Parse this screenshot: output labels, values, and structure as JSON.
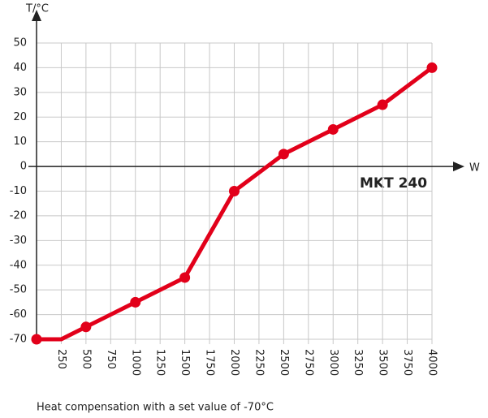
{
  "chart_data": {
    "type": "line",
    "y_label": "T/°C",
    "x_label": "W",
    "annotation": "MKT 240",
    "caption": "Heat compensation with a set value of -70°C",
    "x": [
      0,
      250,
      500,
      1000,
      1500,
      2000,
      2500,
      3000,
      3500,
      4000
    ],
    "series": [
      {
        "name": "MKT 240",
        "color": "#e2001a",
        "values": [
          -70,
          -70,
          -65,
          -55,
          -45,
          -10,
          5,
          15,
          25,
          40
        ],
        "markers": [
          true,
          false,
          true,
          true,
          true,
          true,
          true,
          true,
          true,
          true
        ]
      }
    ],
    "xlim": [
      0,
      4000
    ],
    "ylim": [
      -70,
      50
    ],
    "xticks": [
      250,
      500,
      750,
      1000,
      1250,
      1500,
      1750,
      2000,
      2250,
      2500,
      2750,
      3000,
      3250,
      3500,
      3750,
      4000
    ],
    "yticks": [
      -70,
      -60,
      -50,
      -40,
      -30,
      -20,
      -10,
      0,
      10,
      20,
      30,
      40,
      50
    ],
    "grid": true
  }
}
